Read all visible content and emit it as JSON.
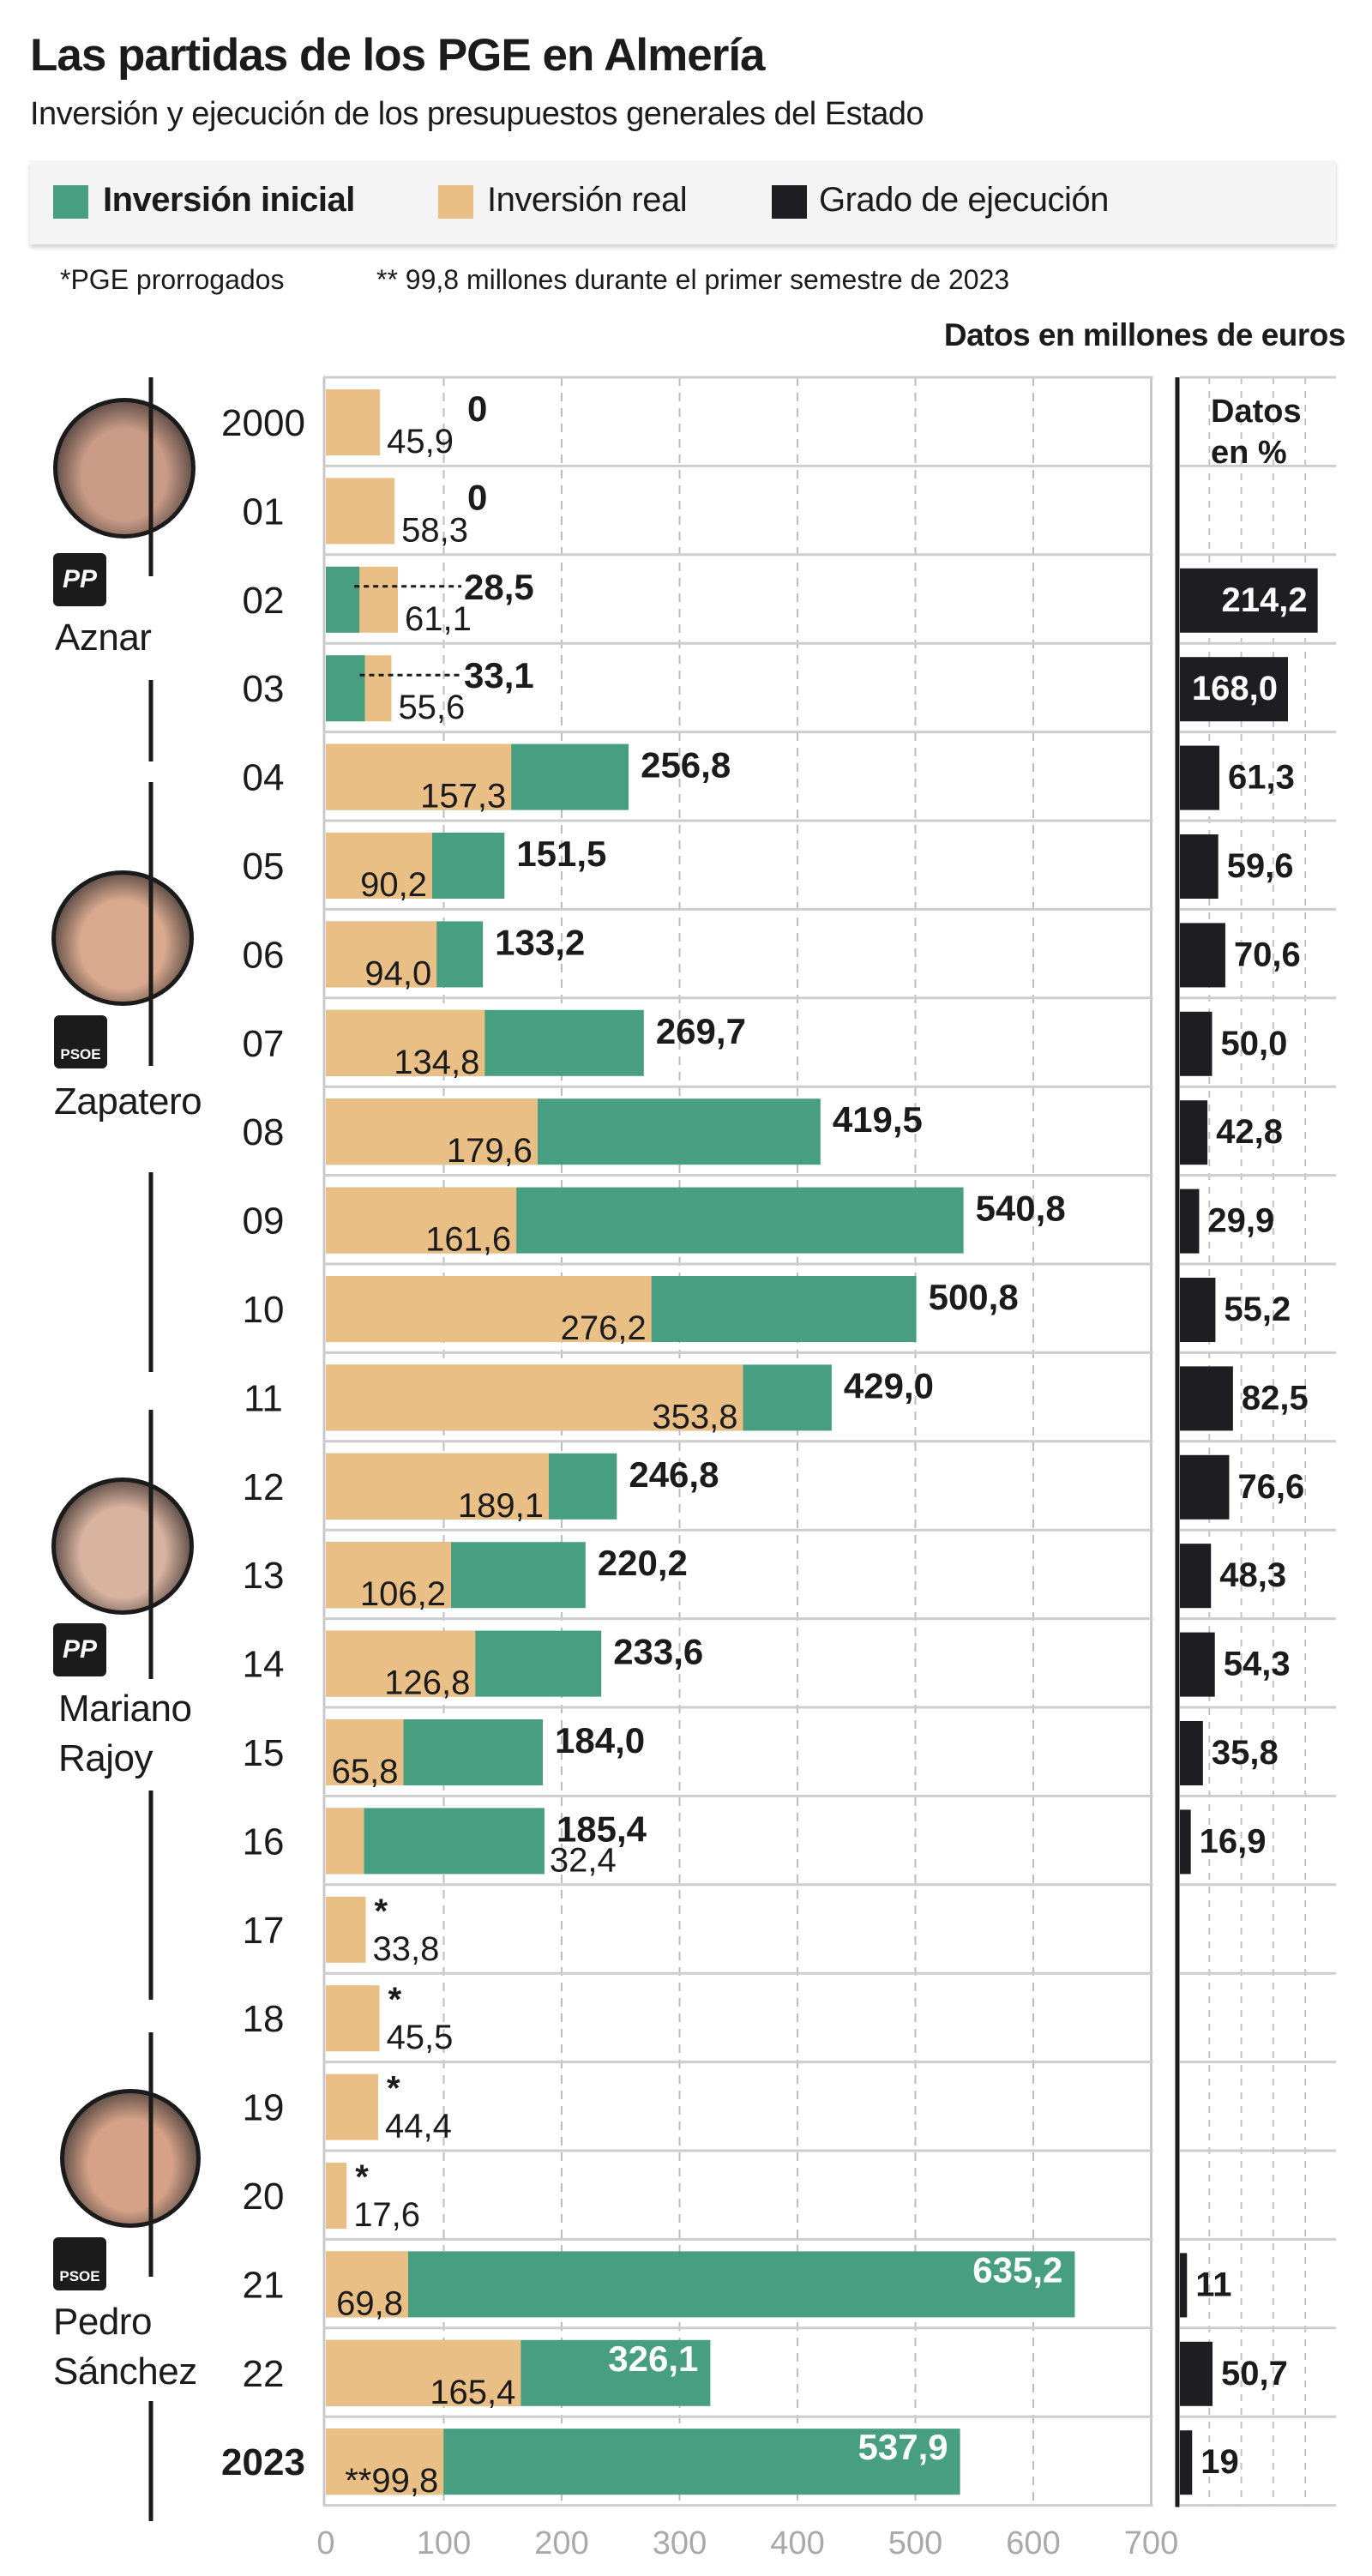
{
  "header": {
    "title": "Las partidas de los PGE en Almería",
    "subtitle": "Inversión y ejecución de los presupuestos generales del Estado"
  },
  "legend": [
    {
      "label": "Inversión inicial",
      "color": "#479e80"
    },
    {
      "label": "Inversión real",
      "color": "#e9bf86"
    },
    {
      "label": "Grado de ejecución",
      "color": "#1e1e22"
    }
  ],
  "notes": {
    "prorrogados": "*PGE prorrogados",
    "semestre": "** 99,8 millones durante el primer semestre de 2023",
    "units": "Datos en millones de euros",
    "panel_header_1": "Datos",
    "panel_header_2": "en %"
  },
  "politicians": [
    {
      "name_1": "Aznar",
      "name_2": "",
      "party": "PP",
      "photo_tone": "#c99a86"
    },
    {
      "name_1": "Zapatero",
      "name_2": "",
      "party": "PSOE",
      "photo_tone": "#d9a98e"
    },
    {
      "name_1": "Mariano",
      "name_2": "Rajoy",
      "party": "PP",
      "photo_tone": "#d8b3a0"
    },
    {
      "name_1": "Pedro",
      "name_2": "Sánchez",
      "party": "PSOE",
      "photo_tone": "#d5a287"
    }
  ],
  "chart_data": {
    "type": "bar",
    "orientation": "horizontal",
    "xlim": [
      0,
      700
    ],
    "x_ticks": [
      "0",
      "100",
      "200",
      "300",
      "400",
      "500",
      "600",
      "700"
    ],
    "grid": true,
    "grado_xlim": [
      0,
      250
    ],
    "colors": {
      "inicial": "#479e80",
      "real": "#e9bf86",
      "grado": "#1e1e22"
    },
    "series": [
      {
        "name": "Inversión inicial"
      },
      {
        "name": "Inversión real"
      },
      {
        "name": "Grado de ejecución"
      }
    ],
    "rows": [
      {
        "year": "2000",
        "inicial": 0,
        "real": 45.9,
        "grado": null,
        "inicial_label": "0",
        "real_label": "45,9",
        "grado_label": ""
      },
      {
        "year": "01",
        "inicial": 0,
        "real": 58.3,
        "grado": null,
        "inicial_label": "0",
        "real_label": "58,3",
        "grado_label": ""
      },
      {
        "year": "02",
        "inicial": 28.5,
        "real": 61.1,
        "grado": 214.2,
        "inicial_label": "28,5",
        "real_label": "61,1",
        "grado_label": "214,2"
      },
      {
        "year": "03",
        "inicial": 33.1,
        "real": 55.6,
        "grado": 168.0,
        "inicial_label": "33,1",
        "real_label": "55,6",
        "grado_label": "168,0"
      },
      {
        "year": "04",
        "inicial": 256.8,
        "real": 157.3,
        "grado": 61.3,
        "inicial_label": "256,8",
        "real_label": "157,3",
        "grado_label": "61,3"
      },
      {
        "year": "05",
        "inicial": 151.5,
        "real": 90.2,
        "grado": 59.6,
        "inicial_label": "151,5",
        "real_label": "90,2",
        "grado_label": "59,6"
      },
      {
        "year": "06",
        "inicial": 133.2,
        "real": 94.0,
        "grado": 70.6,
        "inicial_label": "133,2",
        "real_label": "94,0",
        "grado_label": "70,6"
      },
      {
        "year": "07",
        "inicial": 269.7,
        "real": 134.8,
        "grado": 50.0,
        "inicial_label": "269,7",
        "real_label": "134,8",
        "grado_label": "50,0"
      },
      {
        "year": "08",
        "inicial": 419.5,
        "real": 179.6,
        "grado": 42.8,
        "inicial_label": "419,5",
        "real_label": "179,6",
        "grado_label": "42,8"
      },
      {
        "year": "09",
        "inicial": 540.8,
        "real": 161.6,
        "grado": 29.9,
        "inicial_label": "540,8",
        "real_label": "161,6",
        "grado_label": "29,9"
      },
      {
        "year": "10",
        "inicial": 500.8,
        "real": 276.2,
        "grado": 55.2,
        "inicial_label": "500,8",
        "real_label": "276,2",
        "grado_label": "55,2"
      },
      {
        "year": "11",
        "inicial": 429.0,
        "real": 353.8,
        "grado": 82.5,
        "inicial_label": "429,0",
        "real_label": "353,8",
        "grado_label": "82,5"
      },
      {
        "year": "12",
        "inicial": 246.8,
        "real": 189.1,
        "grado": 76.6,
        "inicial_label": "246,8",
        "real_label": "189,1",
        "grado_label": "76,6"
      },
      {
        "year": "13",
        "inicial": 220.2,
        "real": 106.2,
        "grado": 48.3,
        "inicial_label": "220,2",
        "real_label": "106,2",
        "grado_label": "48,3"
      },
      {
        "year": "14",
        "inicial": 233.6,
        "real": 126.8,
        "grado": 54.3,
        "inicial_label": "233,6",
        "real_label": "126,8",
        "grado_label": "54,3"
      },
      {
        "year": "15",
        "inicial": 184.0,
        "real": 65.8,
        "grado": 35.8,
        "inicial_label": "184,0",
        "real_label": "65,8",
        "grado_label": "35,8"
      },
      {
        "year": "16",
        "inicial": 185.4,
        "real": 32.4,
        "grado": 16.9,
        "inicial_label": "185,4",
        "real_label": "32,4",
        "grado_label": "16,9"
      },
      {
        "year": "17",
        "inicial": null,
        "real": 33.8,
        "grado": null,
        "inicial_label": "*",
        "real_label": "33,8",
        "grado_label": ""
      },
      {
        "year": "18",
        "inicial": null,
        "real": 45.5,
        "grado": null,
        "inicial_label": "*",
        "real_label": "45,5",
        "grado_label": ""
      },
      {
        "year": "19",
        "inicial": null,
        "real": 44.4,
        "grado": null,
        "inicial_label": "*",
        "real_label": "44,4",
        "grado_label": ""
      },
      {
        "year": "20",
        "inicial": null,
        "real": 17.6,
        "grado": null,
        "inicial_label": "*",
        "real_label": "17,6",
        "grado_label": ""
      },
      {
        "year": "21",
        "inicial": 635.2,
        "real": 69.8,
        "grado": 11,
        "inicial_label": "635,2",
        "real_label": "69,8",
        "grado_label": "11"
      },
      {
        "year": "22",
        "inicial": 326.1,
        "real": 165.4,
        "grado": 50.7,
        "inicial_label": "326,1",
        "real_label": "165,4",
        "grado_label": "50,7"
      },
      {
        "year": "2023",
        "inicial": 537.9,
        "real": 99.8,
        "grado": 19,
        "inicial_label": "537,9",
        "real_label": "**99,8",
        "grado_label": "19"
      }
    ]
  }
}
